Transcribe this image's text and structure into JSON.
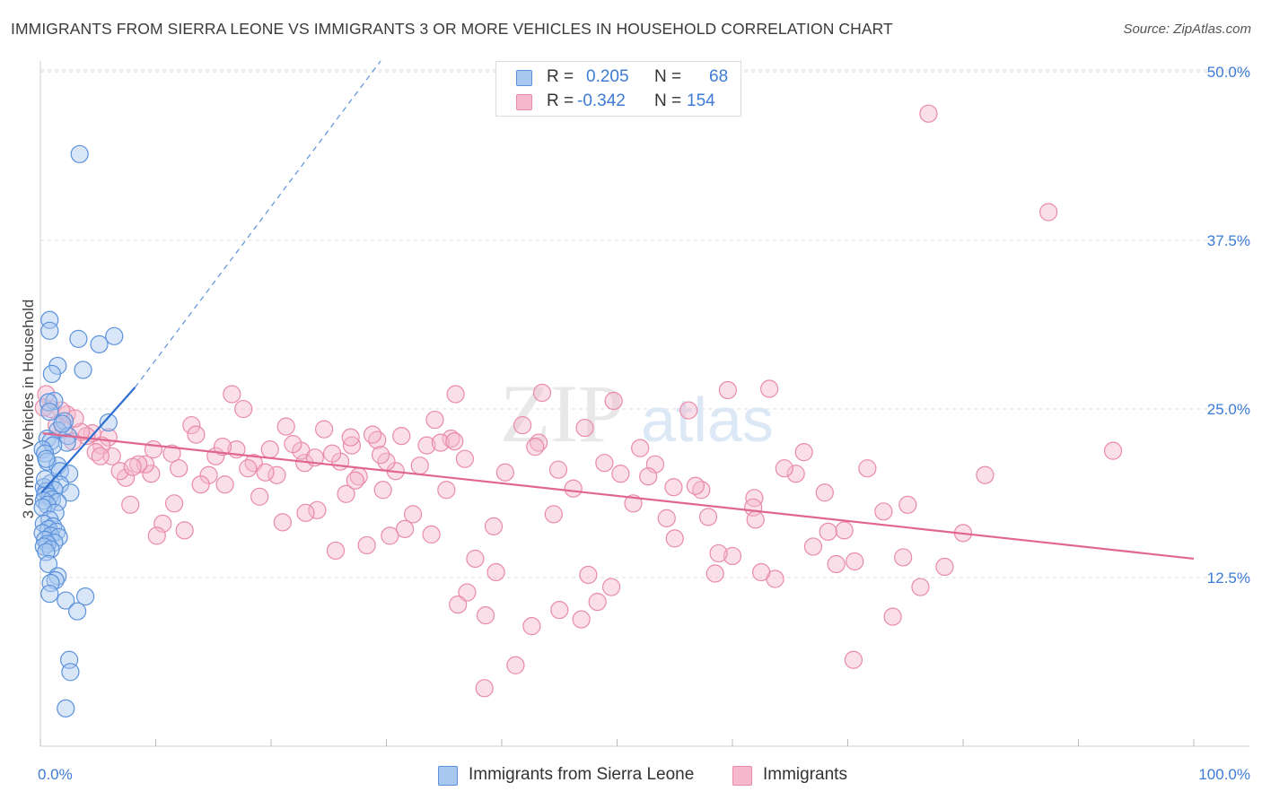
{
  "title": "IMMIGRANTS FROM SIERRA LEONE VS IMMIGRANTS 3 OR MORE VEHICLES IN HOUSEHOLD CORRELATION CHART",
  "source": "Source: ZipAtlas.com",
  "watermark": {
    "zip": "ZIP",
    "atlas": "atlas"
  },
  "legend_top": {
    "rows": [
      {
        "r_label": "R =",
        "r_value": "0.205",
        "n_label": "N =",
        "n_value": "68"
      },
      {
        "r_label": "R =",
        "r_value": "-0.342",
        "n_label": "N =",
        "n_value": "154"
      }
    ]
  },
  "legend_bottom": {
    "items": [
      {
        "label": "Immigrants from Sierra Leone"
      },
      {
        "label": "Immigrants"
      }
    ]
  },
  "colors": {
    "blue_fill": "#a8c8f0",
    "blue_stroke": "#5b92db",
    "blue_line": "#2f6fd0",
    "pink_fill": "#f5b8cc",
    "pink_stroke": "#e98aaa",
    "pink_line": "#e0668f",
    "axis_label": "#3d7bd6",
    "grid": "#dddddd"
  },
  "chart_data": {
    "type": "scatter",
    "title": "IMMIGRANTS FROM SIERRA LEONE VS IMMIGRANTS 3 OR MORE VEHICLES IN HOUSEHOLD CORRELATION CHART",
    "xlabel": "",
    "ylabel": "3 or more Vehicles in Household",
    "xlim": [
      0,
      100
    ],
    "ylim": [
      0,
      52
    ],
    "x_tick_labels": [
      {
        "value": 0,
        "label": "0.0%"
      },
      {
        "value": 100,
        "label": "100.0%"
      }
    ],
    "y_tick_labels": [
      {
        "value": 12.5,
        "label": "12.5%"
      },
      {
        "value": 25.0,
        "label": "25.0%"
      },
      {
        "value": 37.5,
        "label": "37.5%"
      },
      {
        "value": 50.0,
        "label": "50.0%"
      }
    ],
    "series": [
      {
        "name": "Immigrants from Sierra Leone",
        "color": "blue",
        "r": 0.205,
        "n": 68,
        "trend": {
          "x": [
            0.1,
            8.2
          ],
          "y": [
            18.8,
            26.6
          ],
          "extend_to_x": 29.5,
          "extend_to_y": 50.8
        },
        "points": [
          [
            3.4,
            43.9
          ],
          [
            0.8,
            31.6
          ],
          [
            0.8,
            30.8
          ],
          [
            3.3,
            30.2
          ],
          [
            6.4,
            30.4
          ],
          [
            5.1,
            29.8
          ],
          [
            1.5,
            28.2
          ],
          [
            3.7,
            27.9
          ],
          [
            1.0,
            27.6
          ],
          [
            1.2,
            25.6
          ],
          [
            0.7,
            25.5
          ],
          [
            0.8,
            24.8
          ],
          [
            2.1,
            24.1
          ],
          [
            5.9,
            24.0
          ],
          [
            1.5,
            23.4
          ],
          [
            2.4,
            23.0
          ],
          [
            0.6,
            22.8
          ],
          [
            0.9,
            22.6
          ],
          [
            2.3,
            22.5
          ],
          [
            1.1,
            22.3
          ],
          [
            0.2,
            22.0
          ],
          [
            0.4,
            21.7
          ],
          [
            0.6,
            21.1
          ],
          [
            1.5,
            20.8
          ],
          [
            1.7,
            20.4
          ],
          [
            2.5,
            20.2
          ],
          [
            0.9,
            19.5
          ],
          [
            1.7,
            19.4
          ],
          [
            0.3,
            19.2
          ],
          [
            1.2,
            19.0
          ],
          [
            0.5,
            18.9
          ],
          [
            2.6,
            18.8
          ],
          [
            0.4,
            18.6
          ],
          [
            0.8,
            18.5
          ],
          [
            1.0,
            18.3
          ],
          [
            0.3,
            18.2
          ],
          [
            1.5,
            18.1
          ],
          [
            0.6,
            17.9
          ],
          [
            0.2,
            17.7
          ],
          [
            1.3,
            17.3
          ],
          [
            0.8,
            16.8
          ],
          [
            0.3,
            16.5
          ],
          [
            1.1,
            16.3
          ],
          [
            0.7,
            16.1
          ],
          [
            1.4,
            15.9
          ],
          [
            0.2,
            15.8
          ],
          [
            0.9,
            15.6
          ],
          [
            1.6,
            15.5
          ],
          [
            0.4,
            15.3
          ],
          [
            1.2,
            15.1
          ],
          [
            0.6,
            15.0
          ],
          [
            0.3,
            14.8
          ],
          [
            0.9,
            14.6
          ],
          [
            0.5,
            14.4
          ],
          [
            0.7,
            13.5
          ],
          [
            1.5,
            12.6
          ],
          [
            1.3,
            12.3
          ],
          [
            0.9,
            12.1
          ],
          [
            0.8,
            11.3
          ],
          [
            3.9,
            11.1
          ],
          [
            2.2,
            10.8
          ],
          [
            3.2,
            10.0
          ],
          [
            2.5,
            6.4
          ],
          [
            2.6,
            5.5
          ],
          [
            2.2,
            2.8
          ],
          [
            0.5,
            21.3
          ],
          [
            1.9,
            23.9
          ],
          [
            0.4,
            19.8
          ]
        ]
      },
      {
        "name": "Immigrants",
        "color": "pink",
        "r": -0.342,
        "n": 154,
        "trend": {
          "x": [
            0.2,
            100
          ],
          "y": [
            23.2,
            13.9
          ]
        },
        "points": [
          [
            77.0,
            46.9
          ],
          [
            87.4,
            39.6
          ],
          [
            93.0,
            21.9
          ],
          [
            81.9,
            20.1
          ],
          [
            80.0,
            15.8
          ],
          [
            78.4,
            13.3
          ],
          [
            76.3,
            11.8
          ],
          [
            74.8,
            14.0
          ],
          [
            73.9,
            9.6
          ],
          [
            70.5,
            6.4
          ],
          [
            70.6,
            13.7
          ],
          [
            69.7,
            16.0
          ],
          [
            68.3,
            15.9
          ],
          [
            68.0,
            18.8
          ],
          [
            65.5,
            20.2
          ],
          [
            64.5,
            20.6
          ],
          [
            73.1,
            17.4
          ],
          [
            67.0,
            14.8
          ],
          [
            63.7,
            12.4
          ],
          [
            62.5,
            12.9
          ],
          [
            61.9,
            18.4
          ],
          [
            60.0,
            14.1
          ],
          [
            58.5,
            12.8
          ],
          [
            57.3,
            19.0
          ],
          [
            56.8,
            19.3
          ],
          [
            55.0,
            15.4
          ],
          [
            54.9,
            19.2
          ],
          [
            54.3,
            16.9
          ],
          [
            52.0,
            22.1
          ],
          [
            50.3,
            20.2
          ],
          [
            49.7,
            25.6
          ],
          [
            49.5,
            11.8
          ],
          [
            48.3,
            10.7
          ],
          [
            47.5,
            12.7
          ],
          [
            46.9,
            9.4
          ],
          [
            45.0,
            10.1
          ],
          [
            44.5,
            17.2
          ],
          [
            43.5,
            26.2
          ],
          [
            43.2,
            22.5
          ],
          [
            42.6,
            8.9
          ],
          [
            41.2,
            6.0
          ],
          [
            39.5,
            12.9
          ],
          [
            39.3,
            16.3
          ],
          [
            38.6,
            9.7
          ],
          [
            38.5,
            4.3
          ],
          [
            37.7,
            13.9
          ],
          [
            37.0,
            11.4
          ],
          [
            36.2,
            10.5
          ],
          [
            36.0,
            26.1
          ],
          [
            35.6,
            22.8
          ],
          [
            35.2,
            19.0
          ],
          [
            34.2,
            24.2
          ],
          [
            33.9,
            15.7
          ],
          [
            32.9,
            20.8
          ],
          [
            32.3,
            17.2
          ],
          [
            31.6,
            16.1
          ],
          [
            30.8,
            20.4
          ],
          [
            30.3,
            15.6
          ],
          [
            29.7,
            19.0
          ],
          [
            29.2,
            22.7
          ],
          [
            28.3,
            14.9
          ],
          [
            27.6,
            20.0
          ],
          [
            27.0,
            22.3
          ],
          [
            26.5,
            18.7
          ],
          [
            26.0,
            21.1
          ],
          [
            25.6,
            14.5
          ],
          [
            24.0,
            17.5
          ],
          [
            23.0,
            17.3
          ],
          [
            22.9,
            21.0
          ],
          [
            22.6,
            21.9
          ],
          [
            21.9,
            22.4
          ],
          [
            21.3,
            23.7
          ],
          [
            20.5,
            20.1
          ],
          [
            19.9,
            22.0
          ],
          [
            19.0,
            18.5
          ],
          [
            18.5,
            21.0
          ],
          [
            17.6,
            25.0
          ],
          [
            17.0,
            22.0
          ],
          [
            16.6,
            26.1
          ],
          [
            16.0,
            19.4
          ],
          [
            15.2,
            21.5
          ],
          [
            14.6,
            20.1
          ],
          [
            13.9,
            19.4
          ],
          [
            13.1,
            23.8
          ],
          [
            12.5,
            16.0
          ],
          [
            12.0,
            20.6
          ],
          [
            11.6,
            18.0
          ],
          [
            11.4,
            21.7
          ],
          [
            10.6,
            16.5
          ],
          [
            10.1,
            15.6
          ],
          [
            9.6,
            20.2
          ],
          [
            9.1,
            20.9
          ],
          [
            8.5,
            20.9
          ],
          [
            7.8,
            17.9
          ],
          [
            7.4,
            19.9
          ],
          [
            6.9,
            20.4
          ],
          [
            6.2,
            21.5
          ],
          [
            5.9,
            22.9
          ],
          [
            5.3,
            22.3
          ],
          [
            4.8,
            21.8
          ],
          [
            4.5,
            23.2
          ],
          [
            4.0,
            23.0
          ],
          [
            3.5,
            23.3
          ],
          [
            2.8,
            22.6
          ],
          [
            2.3,
            24.6
          ],
          [
            1.8,
            24.9
          ],
          [
            1.4,
            23.8
          ],
          [
            0.9,
            25.0
          ],
          [
            0.5,
            26.1
          ],
          [
            0.3,
            25.1
          ],
          [
            18.0,
            20.6
          ],
          [
            21.0,
            16.6
          ],
          [
            24.6,
            23.5
          ],
          [
            26.9,
            22.9
          ],
          [
            28.8,
            23.1
          ],
          [
            30.0,
            21.1
          ],
          [
            31.3,
            23.0
          ],
          [
            33.5,
            22.3
          ],
          [
            34.7,
            22.5
          ],
          [
            36.8,
            21.3
          ],
          [
            40.3,
            20.3
          ],
          [
            42.9,
            22.2
          ],
          [
            44.9,
            20.5
          ],
          [
            46.2,
            19.1
          ],
          [
            48.9,
            21.0
          ],
          [
            51.4,
            18.0
          ],
          [
            53.3,
            20.9
          ],
          [
            56.2,
            24.9
          ],
          [
            57.9,
            17.0
          ],
          [
            59.6,
            26.4
          ],
          [
            61.8,
            17.7
          ],
          [
            63.2,
            26.5
          ],
          [
            66.2,
            21.8
          ],
          [
            71.7,
            20.6
          ],
          [
            75.2,
            17.9
          ],
          [
            2.0,
            23.5
          ],
          [
            3.0,
            24.3
          ],
          [
            5.2,
            21.5
          ],
          [
            8.0,
            20.7
          ],
          [
            9.8,
            22.0
          ],
          [
            13.5,
            23.1
          ],
          [
            15.8,
            22.2
          ],
          [
            19.5,
            20.3
          ],
          [
            23.8,
            21.4
          ],
          [
            25.3,
            21.7
          ],
          [
            27.3,
            19.7
          ],
          [
            29.5,
            21.6
          ],
          [
            35.9,
            22.6
          ],
          [
            41.8,
            23.8
          ],
          [
            47.2,
            23.6
          ],
          [
            52.7,
            20.0
          ],
          [
            58.8,
            14.3
          ],
          [
            62.0,
            16.8
          ],
          [
            69.0,
            13.5
          ]
        ]
      }
    ]
  }
}
